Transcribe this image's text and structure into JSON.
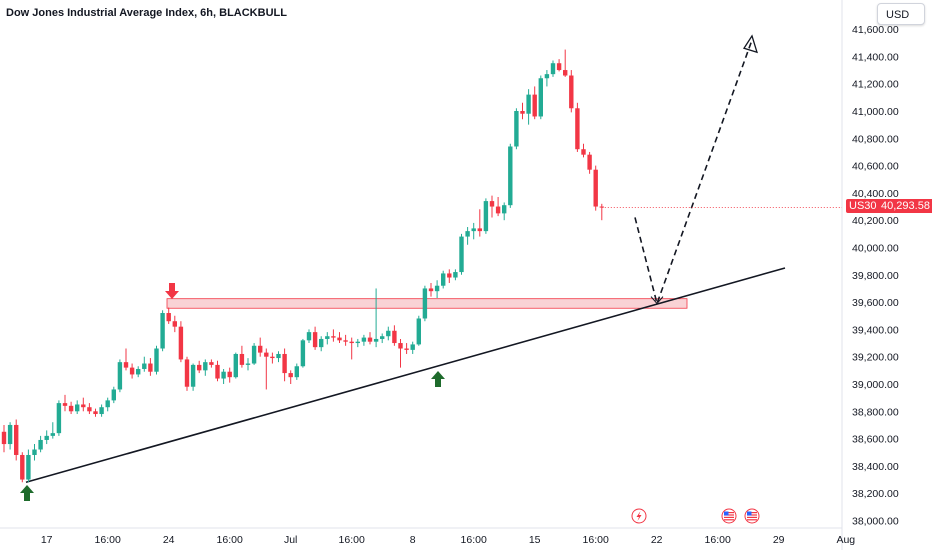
{
  "header": {
    "title": "Dow Jones Industrial Average Index, 6h, BLACKBULL",
    "currency": "USD"
  },
  "price_label": {
    "symbol": "US30",
    "value": "40,293.58"
  },
  "colors": {
    "up": "#089981",
    "down": "#f23645",
    "up_candle": "#22ab94",
    "zone_fill": "#f7c3c7",
    "zone_stroke": "#f23645",
    "arrow_green": "#1e6b2c",
    "arrow_red": "#f23645",
    "trendline": "#131722"
  },
  "events": {
    "icons": [
      "lightning-icon",
      "us-flag-icon",
      "us-flag-icon"
    ]
  },
  "chart_data": {
    "type": "candlestick",
    "title": "Dow Jones Industrial Average Index, 6h, BLACKBULL",
    "ylim": [
      38000,
      41600
    ],
    "y_ticks": [
      38000,
      38200,
      38400,
      38600,
      38800,
      39000,
      39200,
      39400,
      39600,
      39800,
      40000,
      40200,
      40400,
      40600,
      40800,
      41000,
      41200,
      41400,
      41600
    ],
    "y_tick_labels": [
      "38,000.00",
      "38,200.00",
      "38,400.00",
      "38,600.00",
      "38,800.00",
      "39,000.00",
      "39,200.00",
      "39,400.00",
      "39,600.00",
      "39,800.00",
      "40,000.00",
      "40,200.00",
      "40,400.00",
      "40,600.00",
      "40,800.00",
      "41,000.00",
      "41,200.00",
      "41,400.00",
      "41,600.00"
    ],
    "x_ticks": [
      {
        "index": 7,
        "label": "17"
      },
      {
        "index": 17,
        "label": "16:00"
      },
      {
        "index": 27,
        "label": "24"
      },
      {
        "index": 37,
        "label": "16:00"
      },
      {
        "index": 47,
        "label": "Jul"
      },
      {
        "index": 57,
        "label": "16:00"
      },
      {
        "index": 67,
        "label": "8"
      },
      {
        "index": 77,
        "label": "16:00"
      },
      {
        "index": 87,
        "label": "15"
      },
      {
        "index": 97,
        "label": "16:00"
      },
      {
        "index": 107,
        "label": "22"
      },
      {
        "index": 117,
        "label": "16:00"
      },
      {
        "index": 127,
        "label": "29"
      },
      {
        "index": 138,
        "label": "Aug"
      }
    ],
    "last_price": 40293.58,
    "candles": [
      [
        38650,
        38700,
        38500,
        38560
      ],
      [
        38560,
        38720,
        38520,
        38700
      ],
      [
        38700,
        38740,
        38440,
        38480
      ],
      [
        38480,
        38500,
        38280,
        38300
      ],
      [
        38300,
        38520,
        38280,
        38480
      ],
      [
        38480,
        38560,
        38440,
        38520
      ],
      [
        38520,
        38620,
        38500,
        38590
      ],
      [
        38590,
        38660,
        38560,
        38620
      ],
      [
        38620,
        38720,
        38600,
        38640
      ],
      [
        38640,
        38880,
        38620,
        38860
      ],
      [
        38860,
        38920,
        38800,
        38840
      ],
      [
        38840,
        38870,
        38780,
        38800
      ],
      [
        38800,
        38880,
        38780,
        38850
      ],
      [
        38850,
        38900,
        38800,
        38830
      ],
      [
        38830,
        38860,
        38780,
        38800
      ],
      [
        38800,
        38820,
        38760,
        38780
      ],
      [
        38780,
        38850,
        38760,
        38830
      ],
      [
        38830,
        38900,
        38800,
        38880
      ],
      [
        38880,
        38980,
        38860,
        38960
      ],
      [
        38960,
        39180,
        38940,
        39160
      ],
      [
        39160,
        39260,
        39100,
        39120
      ],
      [
        39120,
        39150,
        39040,
        39070
      ],
      [
        39070,
        39130,
        39050,
        39110
      ],
      [
        39110,
        39200,
        39090,
        39150
      ],
      [
        39150,
        39190,
        39060,
        39090
      ],
      [
        39090,
        39280,
        39070,
        39260
      ],
      [
        39260,
        39540,
        39240,
        39520
      ],
      [
        39520,
        39560,
        39440,
        39460
      ],
      [
        39460,
        39500,
        39380,
        39420
      ],
      [
        39420,
        39460,
        39160,
        39180
      ],
      [
        39180,
        39200,
        38950,
        38980
      ],
      [
        38980,
        39150,
        38950,
        39140
      ],
      [
        39140,
        39170,
        39080,
        39100
      ],
      [
        39100,
        39180,
        39060,
        39160
      ],
      [
        39160,
        39180,
        39120,
        39140
      ],
      [
        39140,
        39170,
        39020,
        39040
      ],
      [
        39040,
        39110,
        39000,
        39090
      ],
      [
        39090,
        39120,
        39010,
        39050
      ],
      [
        39050,
        39230,
        39040,
        39220
      ],
      [
        39220,
        39280,
        39120,
        39140
      ],
      [
        39140,
        39190,
        39100,
        39150
      ],
      [
        39150,
        39300,
        39140,
        39280
      ],
      [
        39280,
        39340,
        39200,
        39230
      ],
      [
        39230,
        39260,
        38960,
        39200
      ],
      [
        39200,
        39230,
        39150,
        39190
      ],
      [
        39190,
        39240,
        39160,
        39220
      ],
      [
        39220,
        39260,
        39020,
        39080
      ],
      [
        39080,
        39100,
        39000,
        39050
      ],
      [
        39050,
        39150,
        39030,
        39130
      ],
      [
        39130,
        39330,
        39120,
        39320
      ],
      [
        39320,
        39400,
        39300,
        39380
      ],
      [
        39380,
        39420,
        39250,
        39270
      ],
      [
        39270,
        39350,
        39240,
        39330
      ],
      [
        39330,
        39380,
        39290,
        39350
      ],
      [
        39350,
        39400,
        39310,
        39340
      ],
      [
        39340,
        39380,
        39300,
        39320
      ],
      [
        39320,
        39360,
        39280,
        39310
      ],
      [
        39310,
        39340,
        39180,
        39300
      ],
      [
        39300,
        39330,
        39270,
        39310
      ],
      [
        39310,
        39360,
        39280,
        39340
      ],
      [
        39340,
        39380,
        39290,
        39310
      ],
      [
        39310,
        39700,
        39270,
        39330
      ],
      [
        39330,
        39370,
        39300,
        39350
      ],
      [
        39350,
        39420,
        39320,
        39390
      ],
      [
        39390,
        39430,
        39280,
        39300
      ],
      [
        39300,
        39330,
        39120,
        39260
      ],
      [
        39260,
        39300,
        39220,
        39250
      ],
      [
        39250,
        39310,
        39220,
        39290
      ],
      [
        39290,
        39500,
        39280,
        39480
      ],
      [
        39480,
        39720,
        39460,
        39700
      ],
      [
        39700,
        39740,
        39640,
        39680
      ],
      [
        39680,
        39760,
        39630,
        39720
      ],
      [
        39720,
        39830,
        39700,
        39810
      ],
      [
        39810,
        39840,
        39740,
        39780
      ],
      [
        39780,
        39840,
        39760,
        39820
      ],
      [
        39820,
        40100,
        39800,
        40080
      ],
      [
        40080,
        40150,
        40020,
        40120
      ],
      [
        40120,
        40180,
        40060,
        40140
      ],
      [
        40140,
        40280,
        40080,
        40120
      ],
      [
        40120,
        40360,
        40100,
        40340
      ],
      [
        40340,
        40380,
        40220,
        40300
      ],
      [
        40300,
        40370,
        40230,
        40250
      ],
      [
        40250,
        40330,
        40200,
        40310
      ],
      [
        40310,
        40760,
        40290,
        40740
      ],
      [
        40740,
        41020,
        40720,
        41000
      ],
      [
        41000,
        41060,
        40940,
        40980
      ],
      [
        40980,
        41160,
        40900,
        41120
      ],
      [
        41120,
        41180,
        40940,
        40960
      ],
      [
        40960,
        41260,
        40940,
        41240
      ],
      [
        41240,
        41300,
        41180,
        41270
      ],
      [
        41270,
        41370,
        41250,
        41350
      ],
      [
        41350,
        41380,
        41290,
        41300
      ],
      [
        41300,
        41450,
        41250,
        41260
      ],
      [
        41260,
        41300,
        40990,
        41020
      ],
      [
        41020,
        41060,
        40700,
        40720
      ],
      [
        40720,
        40760,
        40660,
        40680
      ],
      [
        40680,
        40700,
        40540,
        40570
      ],
      [
        40570,
        40600,
        40270,
        40300
      ],
      [
        40300,
        40320,
        40200,
        40294
      ]
    ]
  }
}
